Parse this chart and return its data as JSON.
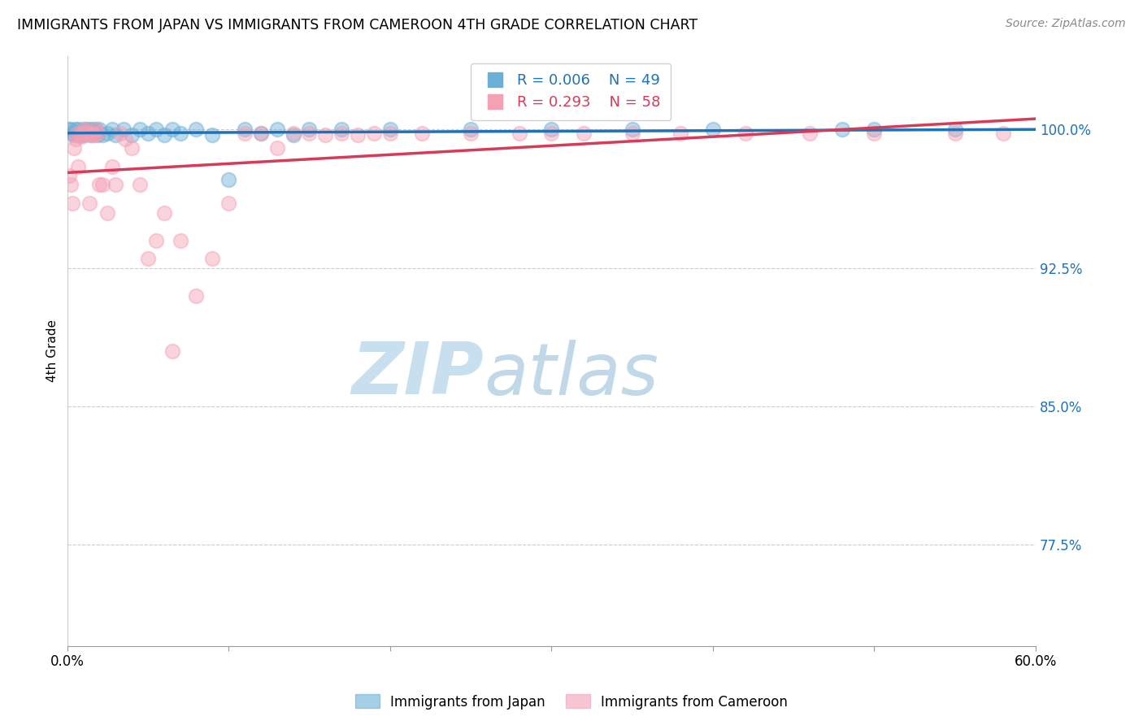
{
  "title": "IMMIGRANTS FROM JAPAN VS IMMIGRANTS FROM CAMEROON 4TH GRADE CORRELATION CHART",
  "source": "Source: ZipAtlas.com",
  "ylabel": "4th Grade",
  "yticks": [
    "100.0%",
    "92.5%",
    "85.0%",
    "77.5%"
  ],
  "ytick_vals": [
    1.0,
    0.925,
    0.85,
    0.775
  ],
  "xlim": [
    0.0,
    0.6
  ],
  "ylim": [
    0.72,
    1.04
  ],
  "legend_r_japan": "R = 0.006",
  "legend_n_japan": "N = 49",
  "legend_r_cameroon": "R = 0.293",
  "legend_n_cameroon": "N = 58",
  "japan_color": "#6baed6",
  "cameroon_color": "#f4a0b5",
  "japan_line_color": "#2171b5",
  "cameroon_line_color": "#d63b5a",
  "japan_points_x": [
    0.001,
    0.002,
    0.003,
    0.004,
    0.005,
    0.006,
    0.007,
    0.008,
    0.009,
    0.01,
    0.011,
    0.012,
    0.013,
    0.014,
    0.015,
    0.016,
    0.017,
    0.018,
    0.019,
    0.02,
    0.022,
    0.025,
    0.028,
    0.03,
    0.035,
    0.04,
    0.045,
    0.05,
    0.055,
    0.06,
    0.065,
    0.07,
    0.08,
    0.09,
    0.1,
    0.11,
    0.12,
    0.13,
    0.14,
    0.15,
    0.17,
    0.2,
    0.25,
    0.3,
    0.35,
    0.4,
    0.48,
    0.5,
    0.55
  ],
  "japan_points_y": [
    1.0,
    1.0,
    0.998,
    0.997,
    1.0,
    0.998,
    1.0,
    0.997,
    0.998,
    1.0,
    0.997,
    1.0,
    0.998,
    1.0,
    0.997,
    1.0,
    0.998,
    1.0,
    0.997,
    1.0,
    0.997,
    0.998,
    1.0,
    0.997,
    1.0,
    0.997,
    1.0,
    0.998,
    1.0,
    0.997,
    1.0,
    0.998,
    1.0,
    0.997,
    0.973,
    1.0,
    0.998,
    1.0,
    0.997,
    1.0,
    1.0,
    1.0,
    1.0,
    1.0,
    1.0,
    1.0,
    1.0,
    1.0,
    1.0
  ],
  "cameroon_points_x": [
    0.001,
    0.002,
    0.003,
    0.004,
    0.005,
    0.006,
    0.007,
    0.008,
    0.009,
    0.01,
    0.011,
    0.012,
    0.013,
    0.014,
    0.015,
    0.016,
    0.017,
    0.018,
    0.019,
    0.02,
    0.022,
    0.025,
    0.028,
    0.03,
    0.033,
    0.036,
    0.04,
    0.045,
    0.05,
    0.055,
    0.06,
    0.065,
    0.07,
    0.08,
    0.09,
    0.1,
    0.11,
    0.12,
    0.13,
    0.14,
    0.15,
    0.16,
    0.17,
    0.18,
    0.19,
    0.2,
    0.22,
    0.25,
    0.28,
    0.3,
    0.32,
    0.35,
    0.38,
    0.42,
    0.46,
    0.5,
    0.55,
    0.58
  ],
  "cameroon_points_y": [
    0.975,
    0.97,
    0.96,
    0.99,
    0.995,
    0.998,
    0.98,
    0.997,
    0.996,
    0.998,
    1.0,
    0.999,
    0.998,
    0.96,
    0.997,
    0.998,
    0.997,
    1.0,
    0.998,
    0.97,
    0.97,
    0.955,
    0.98,
    0.97,
    0.998,
    0.995,
    0.99,
    0.97,
    0.93,
    0.94,
    0.955,
    0.88,
    0.94,
    0.91,
    0.93,
    0.96,
    0.998,
    0.998,
    0.99,
    0.998,
    0.998,
    0.997,
    0.998,
    0.997,
    0.998,
    0.998,
    0.998,
    0.998,
    0.998,
    0.998,
    0.998,
    0.998,
    0.998,
    0.998,
    0.998,
    0.998,
    0.998,
    0.998
  ],
  "watermark_zip": "ZIP",
  "watermark_atlas": "atlas",
  "watermark_color_zip": "#c8dff0",
  "watermark_color_atlas": "#c0d8e8"
}
